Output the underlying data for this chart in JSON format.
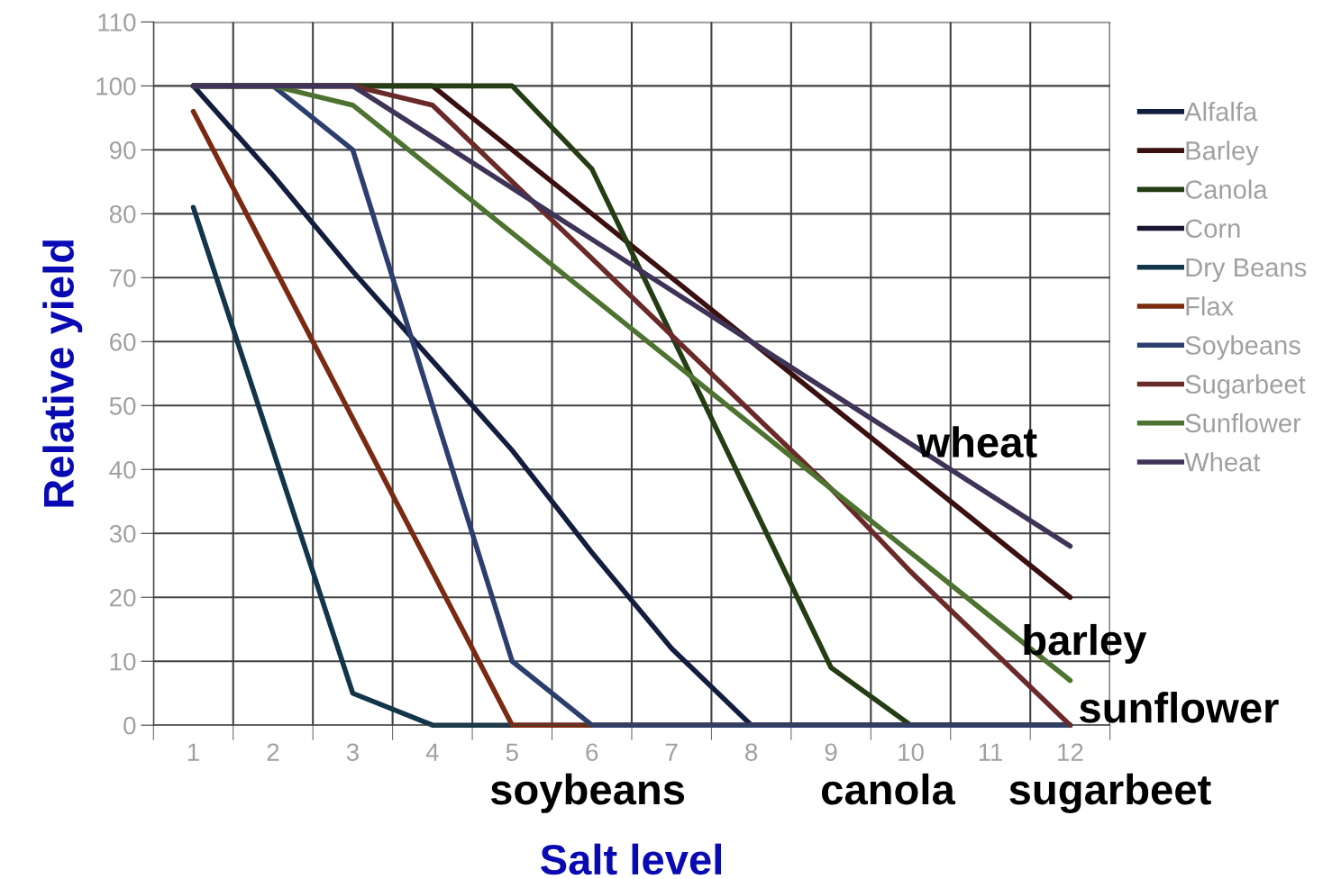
{
  "chart_data": {
    "type": "line",
    "xlabel": "Salt level",
    "ylabel": "Relative yield",
    "categories": [
      "1",
      "2",
      "3",
      "4",
      "5",
      "6",
      "7",
      "8",
      "9",
      "10",
      "11",
      "12"
    ],
    "ylim": [
      0,
      110
    ],
    "yticks": [
      0,
      10,
      20,
      30,
      40,
      50,
      60,
      70,
      80,
      90,
      100,
      110
    ],
    "grid": true,
    "legend": "right",
    "marker": "none",
    "line_style": "solid",
    "series": [
      {
        "name": "Alfalfa",
        "color": "#131d3f",
        "values": [
          100,
          86,
          71,
          57,
          43,
          27,
          12,
          0,
          0,
          0,
          0,
          0
        ]
      },
      {
        "name": "Barley",
        "color": "#3a1010",
        "values": [
          100,
          100,
          100,
          100,
          90,
          80,
          70,
          60,
          50,
          40,
          30,
          20
        ]
      },
      {
        "name": "Canola",
        "color": "#243d14",
        "values": [
          100,
          100,
          100,
          100,
          100,
          87,
          61,
          35,
          9,
          0,
          0,
          0
        ]
      },
      {
        "name": "Corn",
        "color": "#1a1530",
        "values": [
          null,
          null,
          null,
          null,
          null,
          null,
          null,
          null,
          null,
          null,
          null,
          null
        ]
      },
      {
        "name": "Dry Beans",
        "color": "#12354a",
        "values": [
          81,
          43,
          5,
          0,
          0,
          0,
          0,
          0,
          0,
          0,
          0,
          0
        ]
      },
      {
        "name": "Flax",
        "color": "#7a2a10",
        "values": [
          96,
          72,
          48,
          24,
          0,
          0,
          0,
          0,
          0,
          0,
          0,
          0
        ]
      },
      {
        "name": "Soybeans",
        "color": "#2c3e6e",
        "values": [
          100,
          100,
          90,
          50,
          10,
          0,
          0,
          0,
          0,
          0,
          0,
          0
        ]
      },
      {
        "name": "Sugarbeet",
        "color": "#6b2a2a",
        "values": [
          100,
          100,
          100,
          97,
          85,
          73,
          61,
          49,
          37,
          24,
          12,
          0
        ]
      },
      {
        "name": "Sunflower",
        "color": "#4e7330",
        "values": [
          100,
          100,
          97,
          87,
          77,
          67,
          57,
          47,
          37,
          27,
          17,
          7
        ]
      },
      {
        "name": "Wheat",
        "color": "#3f3458",
        "values": [
          100,
          100,
          100,
          92,
          84,
          76,
          68,
          60,
          52,
          44,
          36,
          28
        ]
      }
    ],
    "annotations": [
      "wheat",
      "barley",
      "sunflower",
      "soybeans",
      "canola",
      "sugarbeet"
    ]
  }
}
